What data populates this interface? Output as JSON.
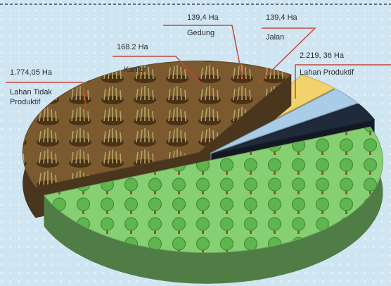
{
  "chart_data": {
    "type": "pie",
    "categories": [
      "Lahan Tidak Produktif",
      "Kantor",
      "Gedung",
      "Jalan",
      "Lahan Produktif"
    ],
    "values": [
      1774.05,
      168.2,
      139.4,
      139.4,
      2219.36
    ],
    "value_labels": [
      "1.774,05 Ha",
      "168.2 Ha",
      "139,4 Ha",
      "139,4 Ha",
      "2.219, 36 Ha"
    ],
    "colors": [
      "#7a5a2e",
      "#f2d36b",
      "#a9cde8",
      "#1f2a3a",
      "#86d073"
    ]
  }
}
